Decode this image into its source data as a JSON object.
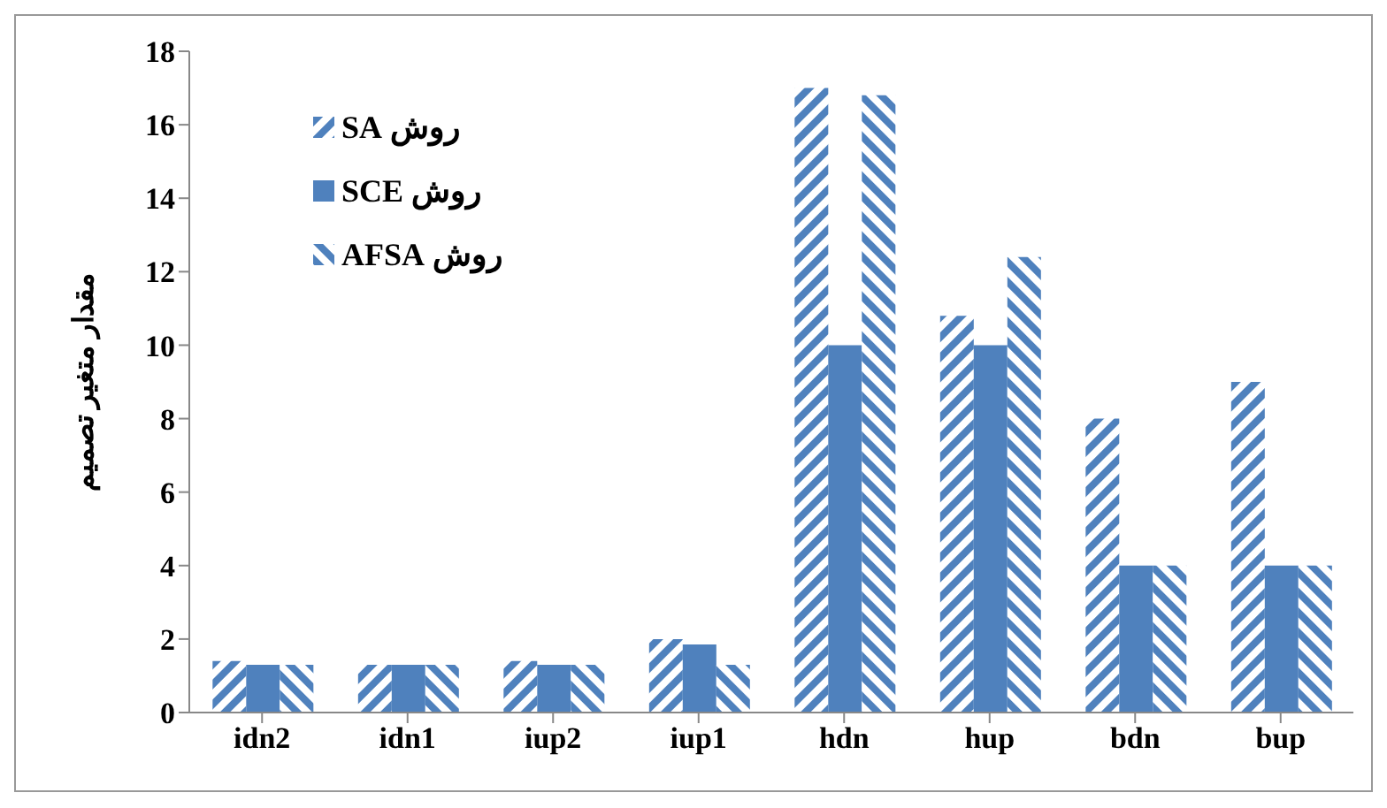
{
  "chart_data": {
    "type": "bar",
    "ylabel": "مقدار متغیر تصمیم",
    "categories": [
      "idn2",
      "idn1",
      "iup2",
      "iup1",
      "hdn",
      "hup",
      "bdn",
      "bup"
    ],
    "series": [
      {
        "name": "روش SA",
        "color": "#4f81bd",
        "values": [
          1.4,
          1.3,
          1.4,
          2.0,
          17,
          10.8,
          8,
          9
        ]
      },
      {
        "name": "روش SCE",
        "color": "#4f81bd",
        "values": [
          1.3,
          1.3,
          1.3,
          1.85,
          10,
          10,
          4,
          4
        ]
      },
      {
        "name": "روش AFSA",
        "color": "#4f81bd",
        "values": [
          1.3,
          1.3,
          1.3,
          1.3,
          16.8,
          12.4,
          4,
          4
        ]
      }
    ],
    "ylim": [
      0,
      18
    ],
    "yticks": [
      0,
      2,
      4,
      6,
      8,
      10,
      12,
      14,
      16,
      18
    ],
    "grid": false,
    "legend": "top left"
  }
}
